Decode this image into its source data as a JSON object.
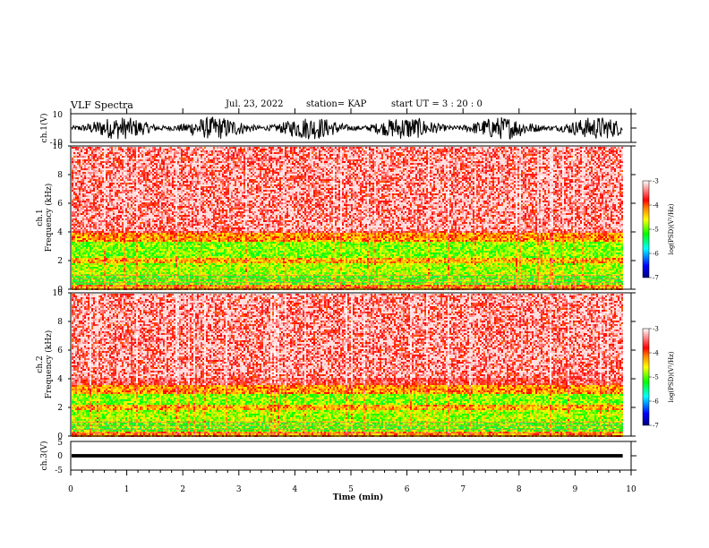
{
  "header": {
    "title": "VLF Spectra",
    "date": "Jul. 23, 2022",
    "station": "station= KAP",
    "start": "start UT = 3 : 20 : 0"
  },
  "chart_data": [
    {
      "type": "line",
      "name": "ch1-waveform",
      "ylabel": "ch.1(V)",
      "ylim": [
        -10,
        10
      ],
      "yticks": [
        "10",
        "-10"
      ],
      "x_range_min": [
        0,
        9.85
      ],
      "style": "dense noisy waveform spanning roughly -8 to 8 V"
    },
    {
      "type": "heatmap",
      "name": "ch1-spectrogram",
      "ylabel_lines": [
        "ch.1",
        "Frequency (kHz)"
      ],
      "ylim": [
        0,
        10
      ],
      "yticks": [
        "0",
        "2",
        "4",
        "6",
        "8",
        "10"
      ],
      "x_range_min": [
        0,
        9.85
      ],
      "bands_khz": [
        {
          "from": 0.0,
          "to": 0.3,
          "level": -4.2
        },
        {
          "from": 0.3,
          "to": 1.0,
          "level": -5.0
        },
        {
          "from": 1.0,
          "to": 1.8,
          "level": -4.8
        },
        {
          "from": 1.8,
          "to": 2.2,
          "level": -4.3
        },
        {
          "from": 2.2,
          "to": 3.3,
          "level": -4.9
        },
        {
          "from": 3.3,
          "to": 4.0,
          "level": -4.2
        },
        {
          "from": 4.0,
          "to": 10.0,
          "level": -3.6
        }
      ]
    },
    {
      "type": "heatmap",
      "name": "ch2-spectrogram",
      "ylabel_lines": [
        "ch.2",
        "Frequency (kHz)"
      ],
      "ylim": [
        0,
        10
      ],
      "yticks": [
        "0",
        "2",
        "4",
        "6",
        "8",
        "10"
      ],
      "x_range_min": [
        0,
        9.85
      ],
      "bands_khz": [
        {
          "from": 0.0,
          "to": 0.3,
          "level": -4.2
        },
        {
          "from": 0.3,
          "to": 1.0,
          "level": -5.0
        },
        {
          "from": 1.0,
          "to": 1.8,
          "level": -4.8
        },
        {
          "from": 1.8,
          "to": 2.2,
          "level": -4.3
        },
        {
          "from": 2.2,
          "to": 3.0,
          "level": -4.9
        },
        {
          "from": 3.0,
          "to": 3.6,
          "level": -4.2
        },
        {
          "from": 3.6,
          "to": 10.0,
          "level": -3.6
        }
      ]
    },
    {
      "type": "line",
      "name": "ch3-waveform",
      "ylabel": "ch.3(V)",
      "ylim": [
        -5,
        5
      ],
      "yticks": [
        "5",
        "0",
        "-5"
      ],
      "x_range_min": [
        0,
        9.85
      ],
      "style": "narrow band around 0 V, about -0.6 to 0.6 V"
    }
  ],
  "x_axis": {
    "label": "Time (min)",
    "range": [
      0,
      10
    ],
    "ticks": [
      "0",
      "1",
      "2",
      "3",
      "4",
      "5",
      "6",
      "7",
      "8",
      "9",
      "10"
    ]
  },
  "colorbar": {
    "label": "log(PSD)(V²/Hz)",
    "range": [
      -7,
      -3
    ],
    "ticks": [
      "-3",
      "-4",
      "-5",
      "-6",
      "-7"
    ],
    "colors": [
      "#00007f",
      "#0000ff",
      "#00ffff",
      "#00ff00",
      "#ffff00",
      "#ff8000",
      "#ff0000",
      "#ffffff"
    ]
  }
}
